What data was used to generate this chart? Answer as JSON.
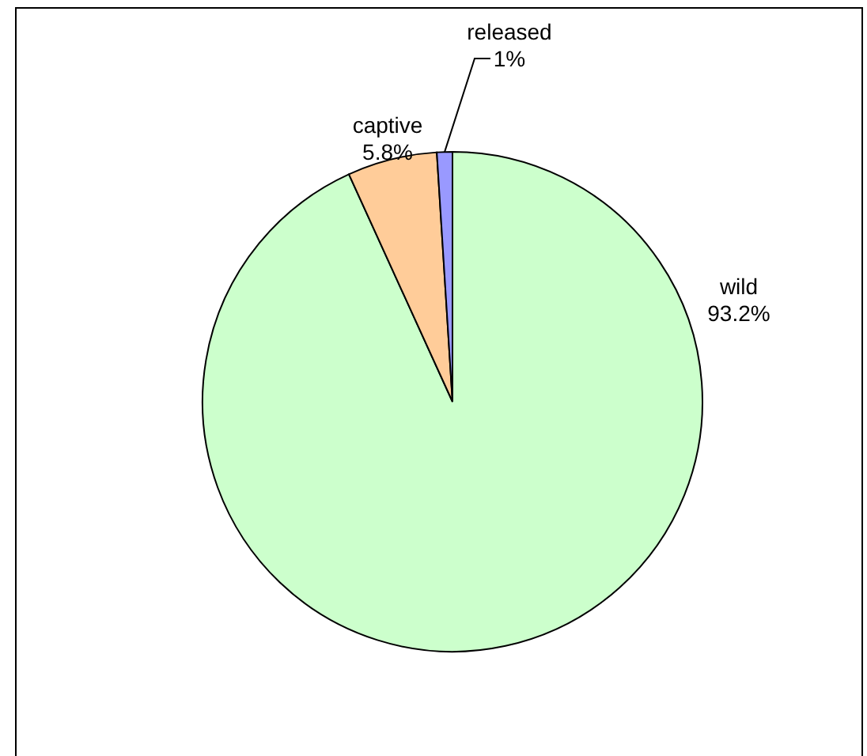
{
  "chart_data": {
    "type": "pie",
    "categories": [
      "wild",
      "captive",
      "released"
    ],
    "values": [
      93.2,
      5.8,
      1
    ],
    "colors": [
      "#ccffcc",
      "#ffcc99",
      "#9999ff"
    ],
    "value_labels": [
      "93.2%",
      "5.8%",
      "1%"
    ]
  }
}
